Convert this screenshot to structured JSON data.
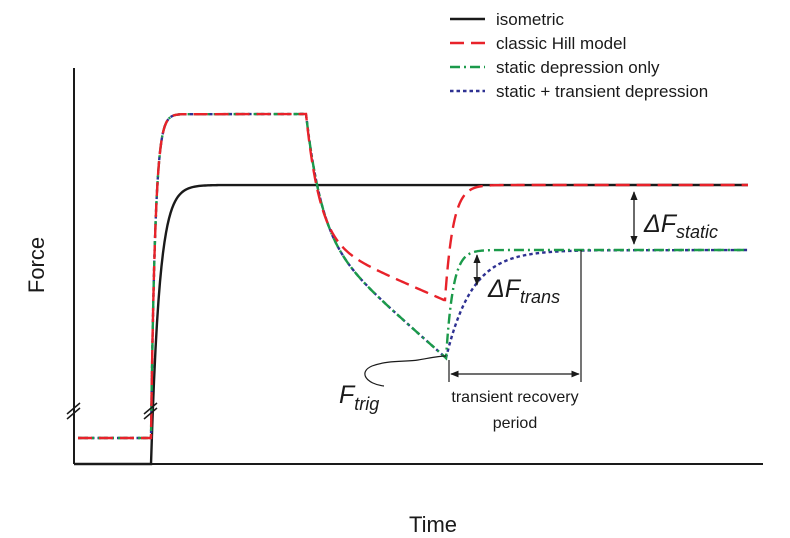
{
  "chart_data": {
    "type": "line",
    "xlabel": "Time",
    "ylabel": "Force",
    "grid": false,
    "legend_position": "top-right",
    "series": [
      {
        "name": "isometric",
        "color": "#1a1a1a",
        "dash": "solid"
      },
      {
        "name": "classic Hill model",
        "color": "#e8222a",
        "dash": "dashed"
      },
      {
        "name": "static depression only",
        "color": "#1b9a4a",
        "dash": "dash-dot"
      },
      {
        "name": "static + transient depression",
        "color": "#2e3192",
        "dash": "dotted"
      }
    ],
    "annotations": {
      "delta_static": {
        "symbol": "ΔF",
        "sub": "static"
      },
      "delta_trans": {
        "symbol": "ΔF",
        "sub": "trans"
      },
      "f_trig": {
        "symbol": "F",
        "sub": "trig"
      },
      "recovery_line1": "transient recovery",
      "recovery_line2": "period"
    }
  }
}
